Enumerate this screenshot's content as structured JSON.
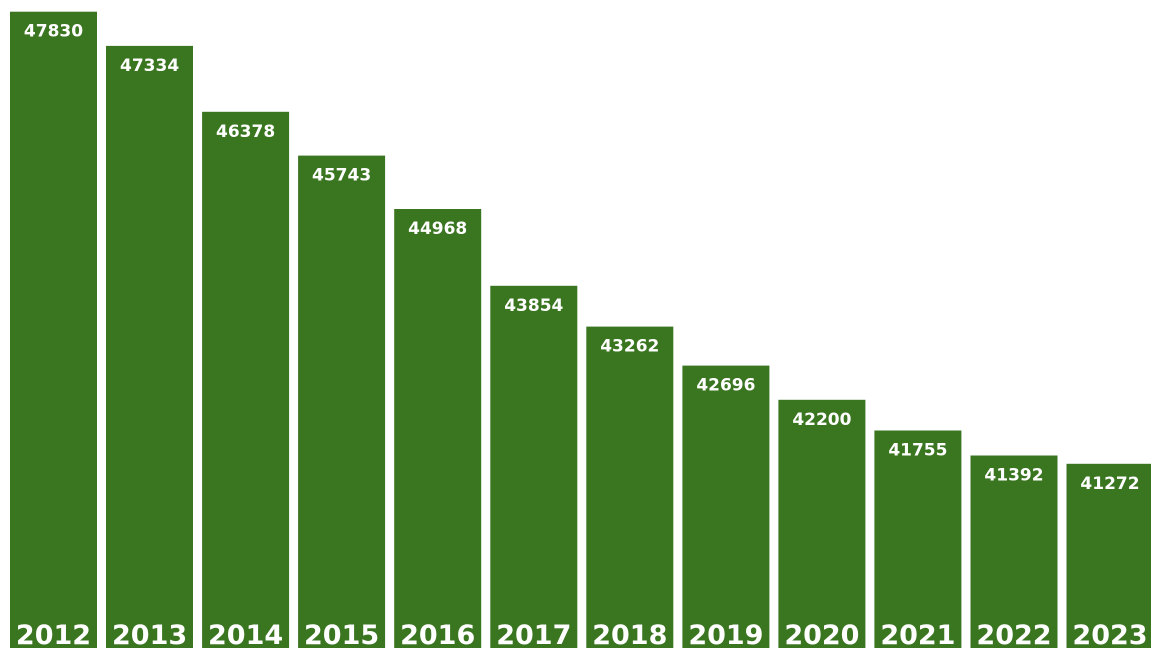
{
  "chart_data": {
    "type": "bar",
    "categories": [
      "2012",
      "2013",
      "2014",
      "2015",
      "2016",
      "2017",
      "2018",
      "2019",
      "2020",
      "2021",
      "2022",
      "2023"
    ],
    "values": [
      47830,
      47334,
      46378,
      45743,
      44968,
      43854,
      43262,
      42696,
      42200,
      41755,
      41392,
      41272
    ],
    "value_labels": [
      "47830",
      "47334",
      "46378",
      "45743",
      "44968",
      "43854",
      "43262",
      "42696",
      "42200",
      "41755",
      "41392",
      "41272"
    ],
    "title": "",
    "xlabel": "",
    "ylabel": "",
    "ylim": [
      38600,
      48000
    ],
    "grid": false,
    "legend": "none",
    "bar_color": "#3a7520",
    "label_color": "#ffffff"
  }
}
